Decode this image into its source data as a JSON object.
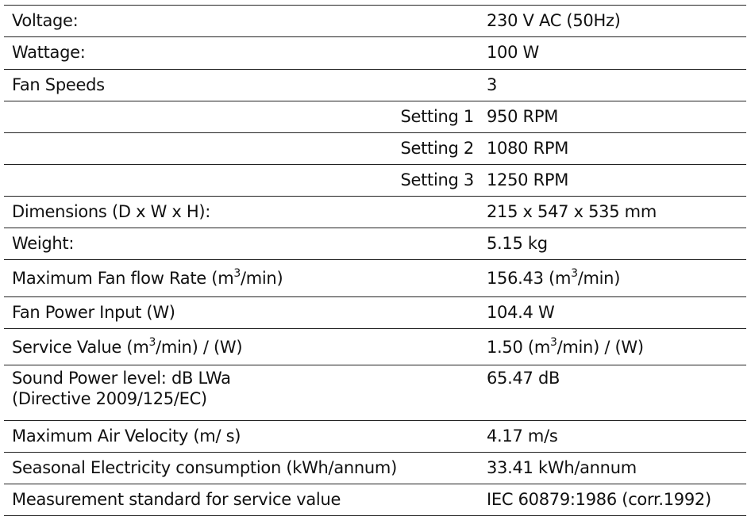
{
  "rows": [
    {
      "label": "Voltage:",
      "value": "230 V AC (50Hz)"
    },
    {
      "label": "Wattage:",
      "value": "100 W"
    },
    {
      "label": "Fan Speeds",
      "value": "3"
    },
    {
      "label": "Setting 1",
      "value": "950 RPM"
    },
    {
      "label": "Setting 2",
      "value": "1080 RPM"
    },
    {
      "label": "Setting 3",
      "value": "1250 RPM"
    },
    {
      "label": "Dimensions (D x W x H):",
      "value": "215 x 547 x 535 mm"
    },
    {
      "label": "Weight:",
      "value": "5.15 kg"
    },
    {
      "label": "Maximum Fan flow Rate (m",
      "label_sup": "3",
      "label_post": "/min)",
      "value": "156.43 (m",
      "value_sup": "3",
      "value_post": "/min)"
    },
    {
      "label": "Fan Power Input (W)",
      "value": "104.4 W"
    },
    {
      "label": "Service Value (m",
      "label_sup": "3",
      "label_post": "/min) / (W)",
      "value": "1.50 (m",
      "value_sup": "3",
      "value_post": "/min) / (W)"
    },
    {
      "label": "Sound Power level: dB LWa",
      "label_line2": "(Directive 2009/125/EC)",
      "value": "65.47 dB"
    },
    {
      "label": "Maximum Air Velocity (m/ s)",
      "value": "4.17 m/s"
    },
    {
      "label": "Seasonal Electricity consumption (kWh/annum)",
      "value": "33.41 kWh/annum"
    },
    {
      "label": "Measurement standard for service value",
      "value": "IEC 60879:1986 (corr.1992)"
    }
  ]
}
